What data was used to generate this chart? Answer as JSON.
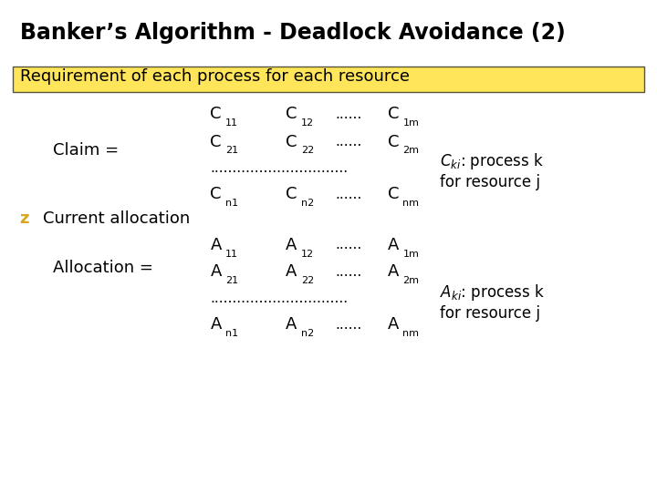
{
  "title": "Banker’s Algorithm - Deadlock Avoidance (2)",
  "bg_color": "#ffffff",
  "title_color": "#000000",
  "highlight_color": "#FFD700",
  "highlight_alpha": 0.65,
  "text_color": "#000000",
  "z_color": "#DAA520",
  "title_fontsize": 17,
  "body_fontsize": 13,
  "sub_fontsize": 8,
  "annot_fontsize": 12,
  "dots_text": "...............................",
  "ellipsis": "......",
  "req_text": "Requirement of each process for each resource",
  "claim_text": "Claim =",
  "alloc_label": "Allocation =",
  "current_text": "Current allocation",
  "z_text": "z",
  "cki_line1": "C",
  "aki_line1": "A",
  "annot_cki": "C",
  "annot_aki": "A",
  "proc_k": ": process k",
  "for_res": "for resource j"
}
